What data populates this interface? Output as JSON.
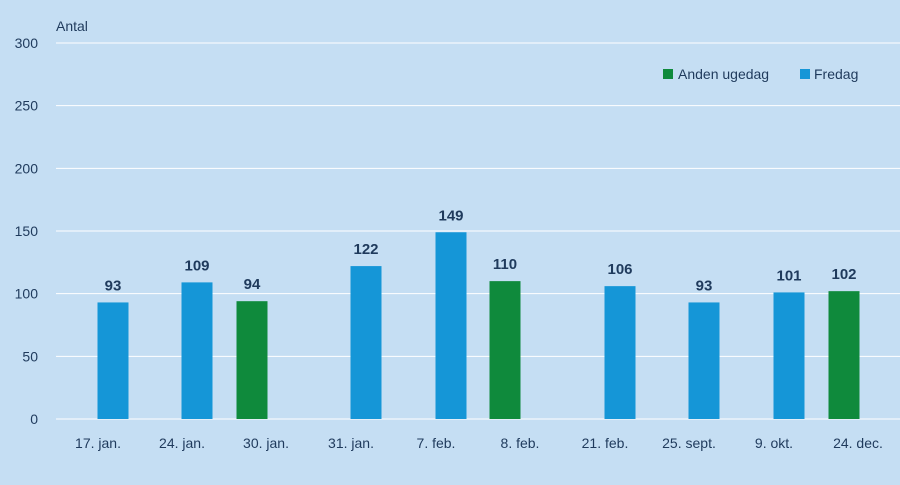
{
  "chart_data": {
    "type": "bar",
    "ylabel": "Antal",
    "ylim": [
      0,
      300
    ],
    "yticks": [
      0,
      50,
      100,
      150,
      200,
      250,
      300
    ],
    "grid": true,
    "legend_position": "top-right",
    "series_names": [
      "Anden ugedag",
      "Fredag"
    ],
    "colors": {
      "Anden ugedag": "#0f8a3c",
      "Fredag": "#1596d7"
    },
    "categories": [
      "17. jan.",
      "24. jan.",
      "30. jan.",
      "31. jan.",
      "7. feb.",
      "8. feb.",
      "21. feb.",
      "25. sept.",
      "9. okt.",
      "24. dec."
    ],
    "bars": [
      {
        "category": "17. jan.",
        "series": "Fredag",
        "value": 93
      },
      {
        "category": "24. jan.",
        "series": "Fredag",
        "value": 109
      },
      {
        "category": "30. jan.",
        "series": "Anden ugedag",
        "value": 94
      },
      {
        "category": "31. jan.",
        "series": "Fredag",
        "value": 122
      },
      {
        "category": "7. feb.",
        "series": "Fredag",
        "value": 149
      },
      {
        "category": "8. feb.",
        "series": "Anden ugedag",
        "value": 110
      },
      {
        "category": "21. feb.",
        "series": "Fredag",
        "value": 106
      },
      {
        "category": "25. sept.",
        "series": "Fredag",
        "value": 93
      },
      {
        "category": "9. okt.",
        "series": "Fredag",
        "value": 101
      },
      {
        "category": "24. dec.",
        "series": "Anden ugedag",
        "value": 102
      }
    ]
  }
}
